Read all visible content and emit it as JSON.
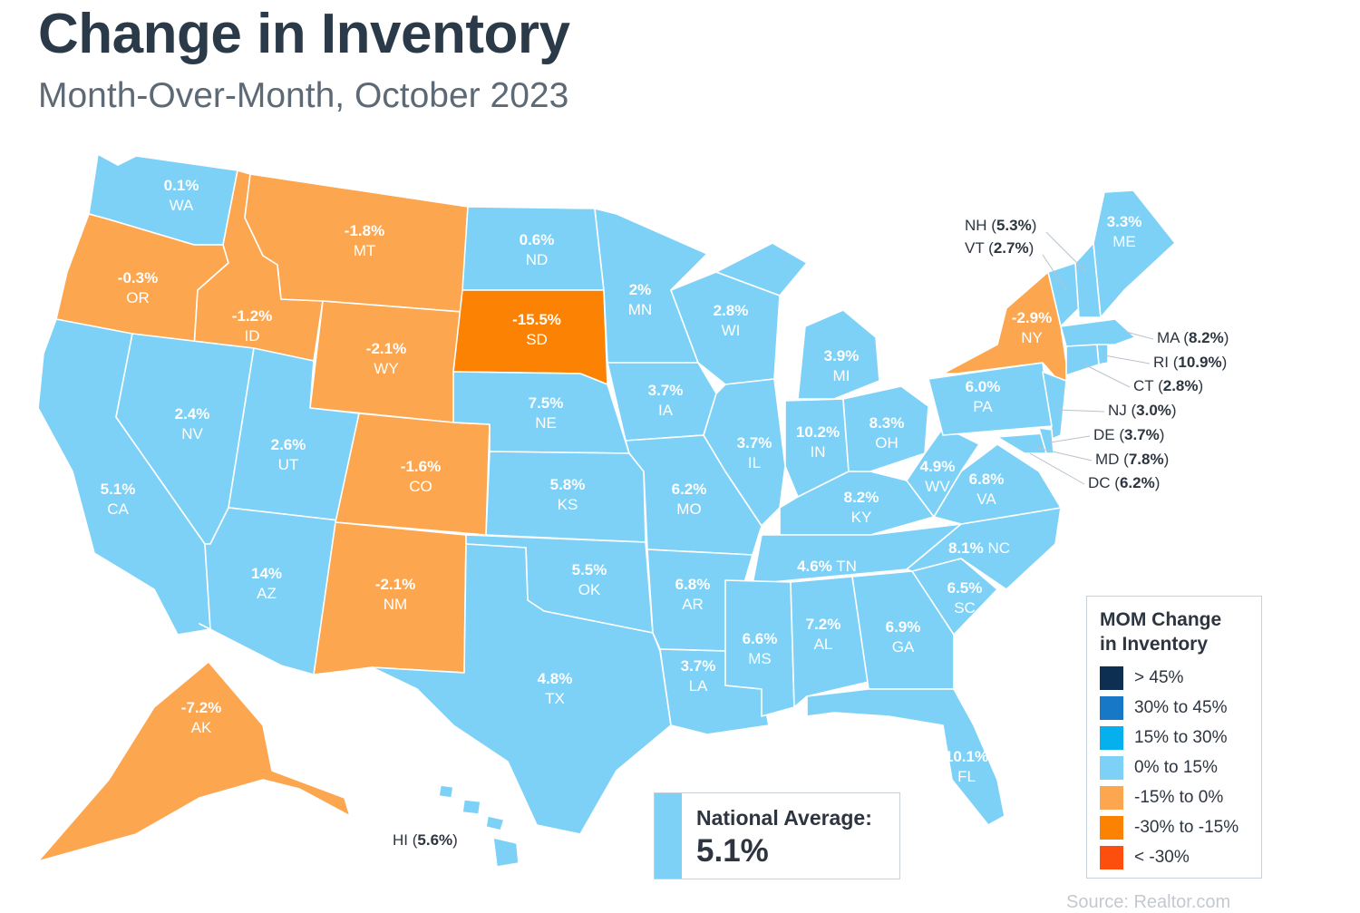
{
  "title": "Change in Inventory",
  "subtitle": "Month-Over-Month, October 2023",
  "colors": {
    "bin_gt45": "#0d2f52",
    "bin_30_45": "#1778c8",
    "bin_15_30": "#06b0ef",
    "bin_0_15": "#7ed1f6",
    "bin_m15_0": "#fca64f",
    "bin_m30_m15": "#fc8204",
    "bin_lt_m30": "#fc4e0c",
    "text_dark": "#2b3a48"
  },
  "legend": {
    "title_line1": "MOM Change",
    "title_line2": "in Inventory",
    "items": [
      {
        "label": "> 45%",
        "color": "#0d2f52"
      },
      {
        "label": "30% to 45%",
        "color": "#1778c8"
      },
      {
        "label": "15% to 30%",
        "color": "#06b0ef"
      },
      {
        "label": "0% to 15%",
        "color": "#7ed1f6"
      },
      {
        "label": "-15% to 0%",
        "color": "#fca64f"
      },
      {
        "label": "-30% to -15%",
        "color": "#fc8204"
      },
      {
        "label": "< -30%",
        "color": "#fc4e0c"
      }
    ]
  },
  "national_average": {
    "label": "National Average:",
    "value": "5.1%"
  },
  "source": "Source: Realtor.com",
  "map_data": {
    "states": [
      {
        "abbr": "WA",
        "value": "0.1%"
      },
      {
        "abbr": "OR",
        "value": "-0.3%"
      },
      {
        "abbr": "CA",
        "value": "5.1%"
      },
      {
        "abbr": "ID",
        "value": "-1.2%"
      },
      {
        "abbr": "NV",
        "value": "2.4%"
      },
      {
        "abbr": "MT",
        "value": "-1.8%"
      },
      {
        "abbr": "WY",
        "value": "-2.1%"
      },
      {
        "abbr": "UT",
        "value": "2.6%"
      },
      {
        "abbr": "AZ",
        "value": "14%"
      },
      {
        "abbr": "CO",
        "value": "-1.6%"
      },
      {
        "abbr": "NM",
        "value": "-2.1%"
      },
      {
        "abbr": "ND",
        "value": "0.6%"
      },
      {
        "abbr": "SD",
        "value": "-15.5%"
      },
      {
        "abbr": "NE",
        "value": "7.5%"
      },
      {
        "abbr": "KS",
        "value": "5.8%"
      },
      {
        "abbr": "OK",
        "value": "5.5%"
      },
      {
        "abbr": "TX",
        "value": "4.8%"
      },
      {
        "abbr": "MN",
        "value": "2%"
      },
      {
        "abbr": "IA",
        "value": "3.7%"
      },
      {
        "abbr": "MO",
        "value": "6.2%"
      },
      {
        "abbr": "AR",
        "value": "6.8%"
      },
      {
        "abbr": "LA",
        "value": "3.7%"
      },
      {
        "abbr": "WI",
        "value": "2.8%"
      },
      {
        "abbr": "IL",
        "value": "3.7%"
      },
      {
        "abbr": "MI",
        "value": "3.9%"
      },
      {
        "abbr": "IN",
        "value": "10.2%"
      },
      {
        "abbr": "OH",
        "value": "8.3%"
      },
      {
        "abbr": "KY",
        "value": "8.2%"
      },
      {
        "abbr": "TN",
        "value": "4.6%"
      },
      {
        "abbr": "MS",
        "value": "6.6%"
      },
      {
        "abbr": "AL",
        "value": "7.2%"
      },
      {
        "abbr": "GA",
        "value": "6.9%"
      },
      {
        "abbr": "FL",
        "value": "10.1%"
      },
      {
        "abbr": "SC",
        "value": "6.5%"
      },
      {
        "abbr": "NC",
        "value": "8.1%"
      },
      {
        "abbr": "VA",
        "value": "6.8%"
      },
      {
        "abbr": "WV",
        "value": "4.9%"
      },
      {
        "abbr": "PA",
        "value": "6.0%"
      },
      {
        "abbr": "NY",
        "value": "-2.9%"
      },
      {
        "abbr": "ME",
        "value": "3.3%"
      },
      {
        "abbr": "AK",
        "value": "-7.2%"
      },
      {
        "abbr": "HI",
        "value": "5.6%"
      },
      {
        "abbr": "NH",
        "value": "5.3%"
      },
      {
        "abbr": "VT",
        "value": "2.7%"
      },
      {
        "abbr": "MA",
        "value": "8.2%"
      },
      {
        "abbr": "RI",
        "value": "10.9%"
      },
      {
        "abbr": "CT",
        "value": "2.8%"
      },
      {
        "abbr": "NJ",
        "value": "3.0%"
      },
      {
        "abbr": "DE",
        "value": "3.7%"
      },
      {
        "abbr": "MD",
        "value": "7.8%"
      },
      {
        "abbr": "DC",
        "value": "6.2%"
      }
    ]
  }
}
